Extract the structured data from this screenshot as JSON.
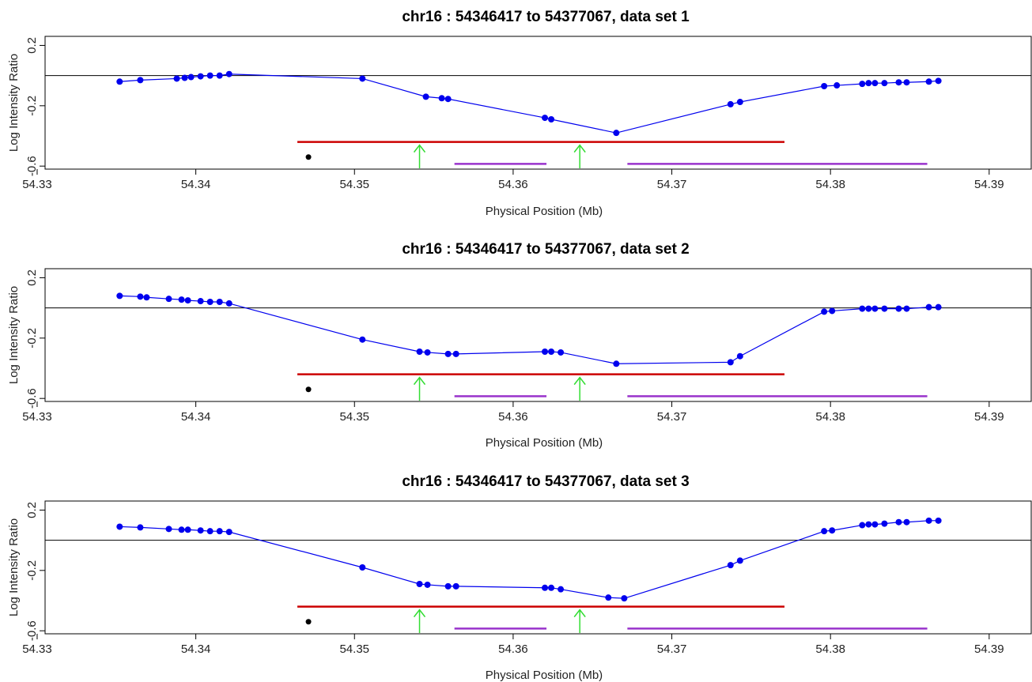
{
  "chart_data": [
    {
      "type": "line",
      "title": "chr16 : 54346417 to 54377067, data set 1",
      "xlabel": "Physical Position (Mb)",
      "ylabel": "Log Intensity Ratio",
      "xlim": [
        54.3305,
        54.3927
      ],
      "ylim": [
        -0.62,
        0.26
      ],
      "xticks": [
        "54.33",
        "54.34",
        "54.35",
        "54.36",
        "54.37",
        "54.38",
        "54.39"
      ],
      "yticks": [
        "-0.6",
        "-0.2",
        "0.2"
      ],
      "reference_line": 0,
      "colors": {
        "series": "#0000ee",
        "segment": "#cc0000",
        "arrow": "#33dd33",
        "gene": "#9933cc",
        "marker": "#000000"
      },
      "series": [
        {
          "x": [
            54.3352,
            54.3365,
            54.3388,
            54.3393,
            54.3397,
            54.3403,
            54.3409,
            54.3415,
            54.3421,
            54.3505,
            54.3545,
            54.3555,
            54.3559,
            54.362,
            54.3624,
            54.3665,
            54.3737,
            54.3743,
            54.3796,
            54.3804,
            54.382,
            54.3824,
            54.3828,
            54.3834,
            54.3843,
            54.3848,
            54.3862,
            54.3868
          ],
          "y": [
            -0.04,
            -0.03,
            -0.02,
            -0.015,
            -0.01,
            -0.005,
            0.0,
            0.0,
            0.01,
            -0.02,
            -0.14,
            -0.15,
            -0.155,
            -0.28,
            -0.29,
            -0.38,
            -0.19,
            -0.175,
            -0.07,
            -0.065,
            -0.055,
            -0.05,
            -0.05,
            -0.05,
            -0.045,
            -0.045,
            -0.04,
            -0.035
          ]
        }
      ],
      "segment": {
        "x": [
          54.3464,
          54.3771
        ],
        "y": -0.44
      },
      "point": {
        "x": 54.3471,
        "y": -0.54
      },
      "arrows_x": [
        54.3541,
        54.3642
      ],
      "genes": [
        [
          54.3563,
          54.3621
        ],
        [
          54.3672,
          54.3861
        ]
      ]
    },
    {
      "type": "line",
      "title": "chr16 : 54346417 to 54377067, data set 2",
      "xlabel": "Physical Position (Mb)",
      "ylabel": "Log Intensity Ratio",
      "xlim": [
        54.3305,
        54.3927
      ],
      "ylim": [
        -0.62,
        0.26
      ],
      "xticks": [
        "54.33",
        "54.34",
        "54.35",
        "54.36",
        "54.37",
        "54.38",
        "54.39"
      ],
      "yticks": [
        "-0.6",
        "-0.2",
        "0.2"
      ],
      "reference_line": 0,
      "colors": {
        "series": "#0000ee",
        "segment": "#cc0000",
        "arrow": "#33dd33",
        "gene": "#9933cc",
        "marker": "#000000"
      },
      "series": [
        {
          "x": [
            54.3352,
            54.3365,
            54.3369,
            54.3383,
            54.3391,
            54.3395,
            54.3403,
            54.3409,
            54.3415,
            54.3421,
            54.3505,
            54.3541,
            54.3546,
            54.3559,
            54.3564,
            54.362,
            54.3624,
            54.363,
            54.3665,
            54.3737,
            54.3743,
            54.3796,
            54.3801,
            54.382,
            54.3824,
            54.3828,
            54.3834,
            54.3843,
            54.3848,
            54.3862,
            54.3868
          ],
          "y": [
            0.08,
            0.075,
            0.07,
            0.06,
            0.055,
            0.05,
            0.045,
            0.04,
            0.04,
            0.03,
            -0.21,
            -0.29,
            -0.295,
            -0.305,
            -0.305,
            -0.29,
            -0.29,
            -0.295,
            -0.37,
            -0.36,
            -0.32,
            -0.025,
            -0.02,
            -0.005,
            -0.005,
            -0.005,
            -0.005,
            -0.005,
            -0.005,
            0.005,
            0.005
          ]
        }
      ],
      "segment": {
        "x": [
          54.3464,
          54.3771
        ],
        "y": -0.44
      },
      "point": {
        "x": 54.3471,
        "y": -0.54
      },
      "arrows_x": [
        54.3541,
        54.3642
      ],
      "genes": [
        [
          54.3563,
          54.3621
        ],
        [
          54.3672,
          54.3861
        ]
      ]
    },
    {
      "type": "line",
      "title": "chr16 : 54346417 to 54377067, data set 3",
      "xlabel": "Physical Position (Mb)",
      "ylabel": "Log Intensity Ratio",
      "xlim": [
        54.3305,
        54.3927
      ],
      "ylim": [
        -0.62,
        0.26
      ],
      "xticks": [
        "54.33",
        "54.34",
        "54.35",
        "54.36",
        "54.37",
        "54.38",
        "54.39"
      ],
      "yticks": [
        "-0.6",
        "-0.2",
        "0.2"
      ],
      "reference_line": 0,
      "colors": {
        "series": "#0000ee",
        "segment": "#cc0000",
        "arrow": "#33dd33",
        "gene": "#9933cc",
        "marker": "#000000"
      },
      "series": [
        {
          "x": [
            54.3352,
            54.3365,
            54.3383,
            54.3391,
            54.3395,
            54.3403,
            54.3409,
            54.3415,
            54.3421,
            54.3505,
            54.3541,
            54.3546,
            54.3559,
            54.3564,
            54.362,
            54.3624,
            54.363,
            54.366,
            54.367,
            54.3737,
            54.3743,
            54.3796,
            54.3801,
            54.382,
            54.3824,
            54.3828,
            54.3834,
            54.3843,
            54.3848,
            54.3862,
            54.3868
          ],
          "y": [
            0.09,
            0.085,
            0.075,
            0.07,
            0.07,
            0.065,
            0.06,
            0.06,
            0.055,
            -0.18,
            -0.29,
            -0.295,
            -0.305,
            -0.305,
            -0.315,
            -0.315,
            -0.325,
            -0.38,
            -0.385,
            -0.165,
            -0.135,
            0.06,
            0.065,
            0.1,
            0.105,
            0.105,
            0.11,
            0.12,
            0.12,
            0.13,
            0.13
          ]
        }
      ],
      "segment": {
        "x": [
          54.3464,
          54.3771
        ],
        "y": -0.44
      },
      "point": {
        "x": 54.3471,
        "y": -0.54
      },
      "arrows_x": [
        54.3541,
        54.3642
      ],
      "genes": [
        [
          54.3563,
          54.3621
        ],
        [
          54.3672,
          54.3861
        ]
      ]
    }
  ]
}
